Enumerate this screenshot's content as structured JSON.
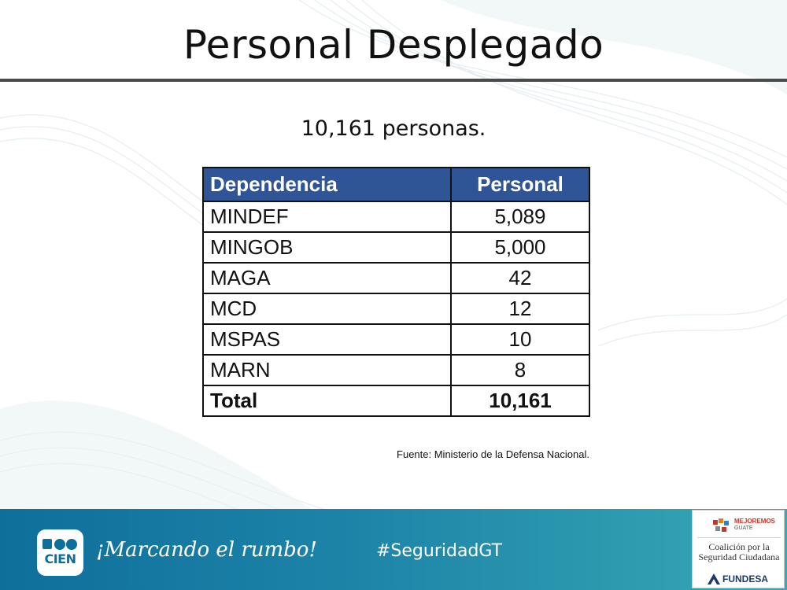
{
  "slide": {
    "title": "Personal Desplegado",
    "subtitle": "10,161 personas."
  },
  "table": {
    "headers": [
      "Dependencia",
      "Personal"
    ],
    "rows": [
      {
        "dependencia": "MINDEF",
        "personal": "5,089"
      },
      {
        "dependencia": "MINGOB",
        "personal": "5,000"
      },
      {
        "dependencia": "MAGA",
        "personal": "42"
      },
      {
        "dependencia": "MCD",
        "personal": "12"
      },
      {
        "dependencia": "MSPAS",
        "personal": "10"
      },
      {
        "dependencia": "MARN",
        "personal": "8"
      }
    ],
    "total": {
      "label": "Total",
      "value": "10,161"
    },
    "header_color": "#2f5597"
  },
  "source": "Fuente: Ministerio de la Defensa Nacional.",
  "footer": {
    "logo_text": "CIEN",
    "slogan": "¡Marcando el rumbo!",
    "hashtag": "#SeguridadGT",
    "partner": {
      "mejoremos": "MEJOREMOS",
      "guate": "GUATE",
      "coalicion_line1": "Coalición por la",
      "coalicion_line2": "Seguridad Ciudadana",
      "fundesa": "FUNDESA"
    },
    "bar_color": "#1d84a8"
  }
}
